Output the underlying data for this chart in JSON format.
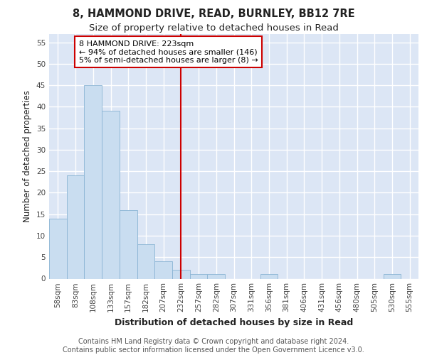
{
  "title1": "8, HAMMOND DRIVE, READ, BURNLEY, BB12 7RE",
  "title2": "Size of property relative to detached houses in Read",
  "xlabel": "Distribution of detached houses by size in Read",
  "ylabel": "Number of detached properties",
  "categories": [
    "58sqm",
    "83sqm",
    "108sqm",
    "133sqm",
    "157sqm",
    "182sqm",
    "207sqm",
    "232sqm",
    "257sqm",
    "282sqm",
    "307sqm",
    "331sqm",
    "356sqm",
    "381sqm",
    "406sqm",
    "431sqm",
    "456sqm",
    "480sqm",
    "505sqm",
    "530sqm",
    "555sqm"
  ],
  "values": [
    14,
    24,
    45,
    39,
    16,
    8,
    4,
    2,
    1,
    1,
    0,
    0,
    1,
    0,
    0,
    0,
    0,
    0,
    0,
    1,
    0
  ],
  "bar_color": "#c9ddf0",
  "bar_edge_color": "#8ab4d4",
  "vline_x": 7.0,
  "vline_color": "#cc0000",
  "annotation_text": "8 HAMMOND DRIVE: 223sqm\n← 94% of detached houses are smaller (146)\n5% of semi-detached houses are larger (8) →",
  "annotation_box_color": "#ffffff",
  "annotation_box_edge": "#cc0000",
  "ylim": [
    0,
    57
  ],
  "yticks": [
    0,
    5,
    10,
    15,
    20,
    25,
    30,
    35,
    40,
    45,
    50,
    55
  ],
  "bg_color": "#dce6f5",
  "grid_color": "#ffffff",
  "footer": "Contains HM Land Registry data © Crown copyright and database right 2024.\nContains public sector information licensed under the Open Government Licence v3.0.",
  "title1_fontsize": 10.5,
  "title2_fontsize": 9.5,
  "xlabel_fontsize": 9,
  "ylabel_fontsize": 8.5,
  "tick_fontsize": 7.5,
  "annotation_fontsize": 8,
  "footer_fontsize": 7
}
